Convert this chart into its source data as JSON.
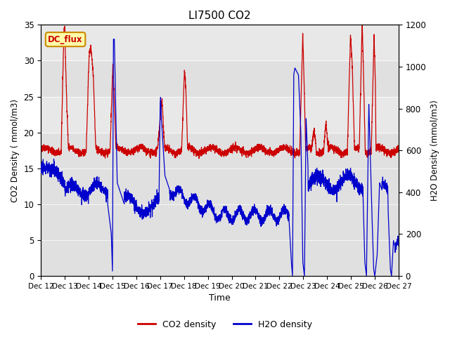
{
  "title": "LI7500 CO2",
  "xlabel": "Time",
  "ylabel_left": "CO2 Density ( mmol/m3)",
  "ylabel_right": "H2O Density (mmol/m3)",
  "ylim_left": [
    0,
    35
  ],
  "ylim_right": [
    0,
    1200
  ],
  "background_color": "#ffffff",
  "plot_bg_color": "#e0e0e0",
  "co2_color": "#cc0000",
  "h2o_color": "#0000cc",
  "annotation_text": "DC_flux",
  "annotation_bg": "#ffffaa",
  "annotation_border": "#cc8800",
  "x_tick_labels": [
    "Dec 12",
    "Dec 13",
    "Dec 14",
    "Dec 15",
    "Dec 16",
    "Dec 17",
    "Dec 18",
    "Dec 19",
    "Dec 20",
    "Dec 21",
    "Dec 22",
    "Dec 23",
    "Dec 24",
    "Dec 25",
    "Dec 26",
    "Dec 27"
  ],
  "band_light": "#e8e8e8",
  "n_points": 3600,
  "seed": 42
}
